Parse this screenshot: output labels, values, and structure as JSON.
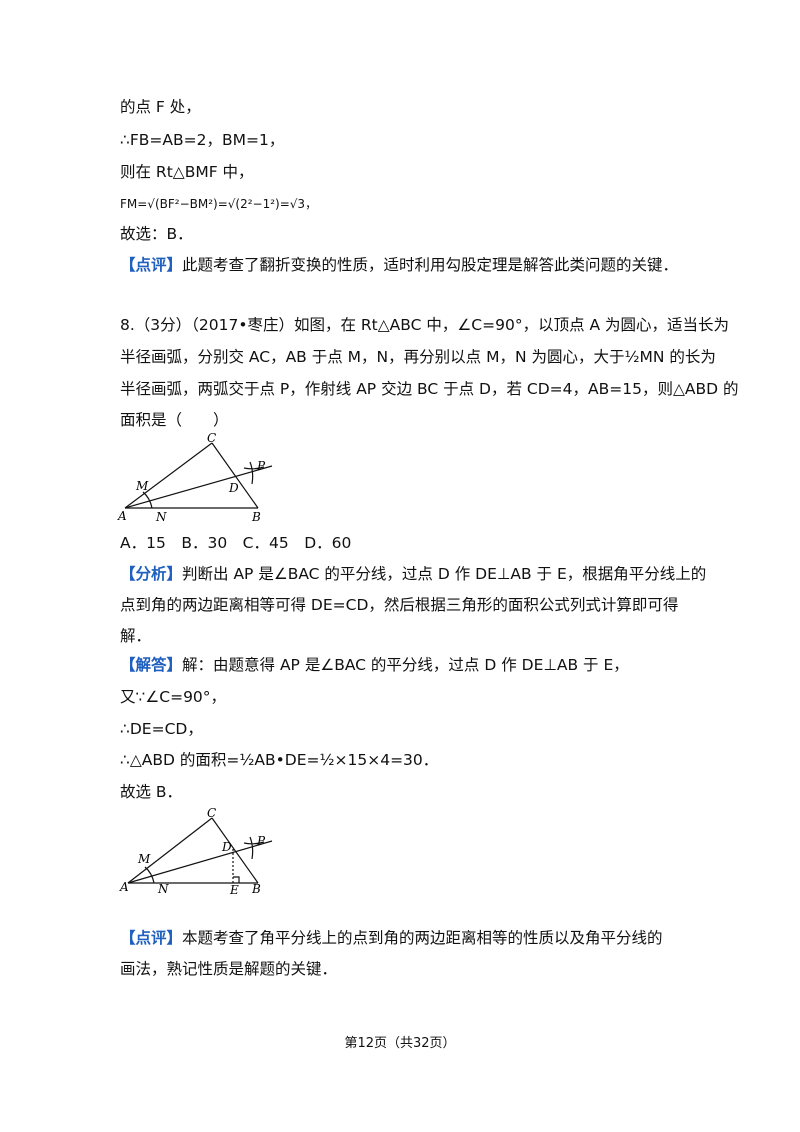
{
  "previous_solution": {
    "lines": [
      "的点 F 处，",
      "∴FB=AB=2，BM=1，",
      "则在 Rt△BMF 中，",
      "FM=√(BF²−BM²)=√(2²−1²)=√3，",
      "故选：B．"
    ],
    "comment": {
      "tag": "【点评】",
      "text": "此题考查了翻折变换的性质，适时利用勾股定理是解答此类问题的关键．"
    }
  },
  "question": {
    "lines": [
      "8.（3分）（2017•枣庄）如图，在 Rt△ABC 中，∠C=90°，以顶点 A 为圆心，适当长为",
      "半径画弧，分别交 AC，AB 于点 M，N，再分别以点 M，N 为圆心，大于½MN 的长为",
      "半径画弧，两弧交于点 P，作射线 AP 交边 BC 于点 D，若 CD=4，AB=15，则△ABD 的",
      "面积是（　　）"
    ],
    "figure_labels": {
      "C": "C",
      "M": "M",
      "P": "P",
      "D": "D",
      "A": "A",
      "N": "N",
      "B": "B"
    },
    "options": "A．15　B．30　C．45　D．60"
  },
  "analysis": {
    "tag": "【分析】",
    "lines": [
      "判断出 AP 是∠BAC 的平分线，过点 D 作 DE⊥AB 于 E，根据角平分线上的",
      "点到角的两边距离相等可得 DE=CD，然后根据三角形的面积公式列式计算即可得",
      "解．"
    ]
  },
  "solution": {
    "tag": "【解答】",
    "lines": [
      "解：由题意得 AP 是∠BAC 的平分线，过点 D 作 DE⊥AB 于 E，",
      "又∵∠C=90°，",
      "∴DE=CD，",
      "∴△ABD 的面积=½AB•DE=½×15×4=30．",
      "故选 B．"
    ],
    "figure_labels": {
      "C": "C",
      "M": "M",
      "P": "P",
      "D": "D",
      "A": "A",
      "N": "N",
      "E": "E",
      "B": "B"
    }
  },
  "comment": {
    "tag": "【点评】",
    "lines": [
      "本题考查了角平分线上的点到角的两边距离相等的性质以及角平分线的",
      "画法，熟记性质是解题的关键．"
    ]
  },
  "footer": "第12页（共32页）"
}
